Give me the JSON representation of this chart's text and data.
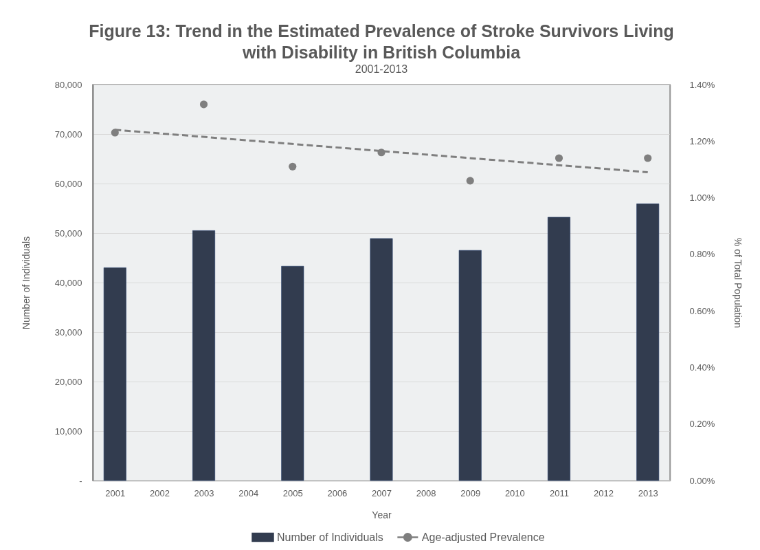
{
  "chart_data": {
    "type": "bar",
    "title": "Figure 13: Trend in the Estimated Prevalence of Stroke Survivors Living with Disability in British Columbia",
    "subtitle": "2001-2013",
    "xlabel": "Year",
    "ylabel": "Number of Individuals",
    "y2label": "% of Total Population",
    "x": [
      2001,
      2002,
      2003,
      2004,
      2005,
      2006,
      2007,
      2008,
      2009,
      2010,
      2011,
      2012,
      2013
    ],
    "series": [
      {
        "name": "Number of Individuals",
        "color": "#323c4f",
        "values": [
          43000,
          null,
          50500,
          null,
          43300,
          null,
          48900,
          null,
          46500,
          null,
          53200,
          null,
          55900
        ]
      },
      {
        "name": "Age-adjusted Prevalence",
        "type": "scatter",
        "axis": "y2",
        "color": "#7f7f7f",
        "marker": "circle",
        "x": [
          2001,
          2003,
          2005,
          2007,
          2009,
          2011,
          2013
        ],
        "values": [
          1.23,
          1.33,
          1.11,
          1.16,
          1.06,
          1.14,
          1.14
        ]
      },
      {
        "type": "line",
        "axis": "y2",
        "color": "#7f7f7f",
        "line_style": "dashed",
        "marker": "none",
        "x": [
          2001,
          2013
        ],
        "values": [
          1.24,
          1.09
        ]
      }
    ],
    "xlim": [
      2000.5,
      2013.5
    ],
    "xticks": [
      2001,
      2002,
      2003,
      2004,
      2005,
      2006,
      2007,
      2008,
      2009,
      2010,
      2011,
      2012,
      2013
    ],
    "ylim": [
      0,
      80000
    ],
    "yticks": [
      {
        "value": 0,
        "label": "-"
      },
      {
        "value": 10000,
        "label": "10,000"
      },
      {
        "value": 20000,
        "label": "20,000"
      },
      {
        "value": 30000,
        "label": "30,000"
      },
      {
        "value": 40000,
        "label": "40,000"
      },
      {
        "value": 50000,
        "label": "50,000"
      },
      {
        "value": 60000,
        "label": "60,000"
      },
      {
        "value": 70000,
        "label": "70,000"
      },
      {
        "value": 80000,
        "label": "80,000"
      }
    ],
    "y2lim": [
      0,
      1.4
    ],
    "y2ticks": [
      {
        "value": 0,
        "label": "0.00%"
      },
      {
        "value": 0.2,
        "label": "0.20%"
      },
      {
        "value": 0.4,
        "label": "0.40%"
      },
      {
        "value": 0.6,
        "label": "0.60%"
      },
      {
        "value": 0.8,
        "label": "0.80%"
      },
      {
        "value": 1.0,
        "label": "1.00%"
      },
      {
        "value": 1.2,
        "label": "1.20%"
      },
      {
        "value": 1.4,
        "label": "1.40%"
      }
    ],
    "grid": "y",
    "legend": "bottom"
  }
}
